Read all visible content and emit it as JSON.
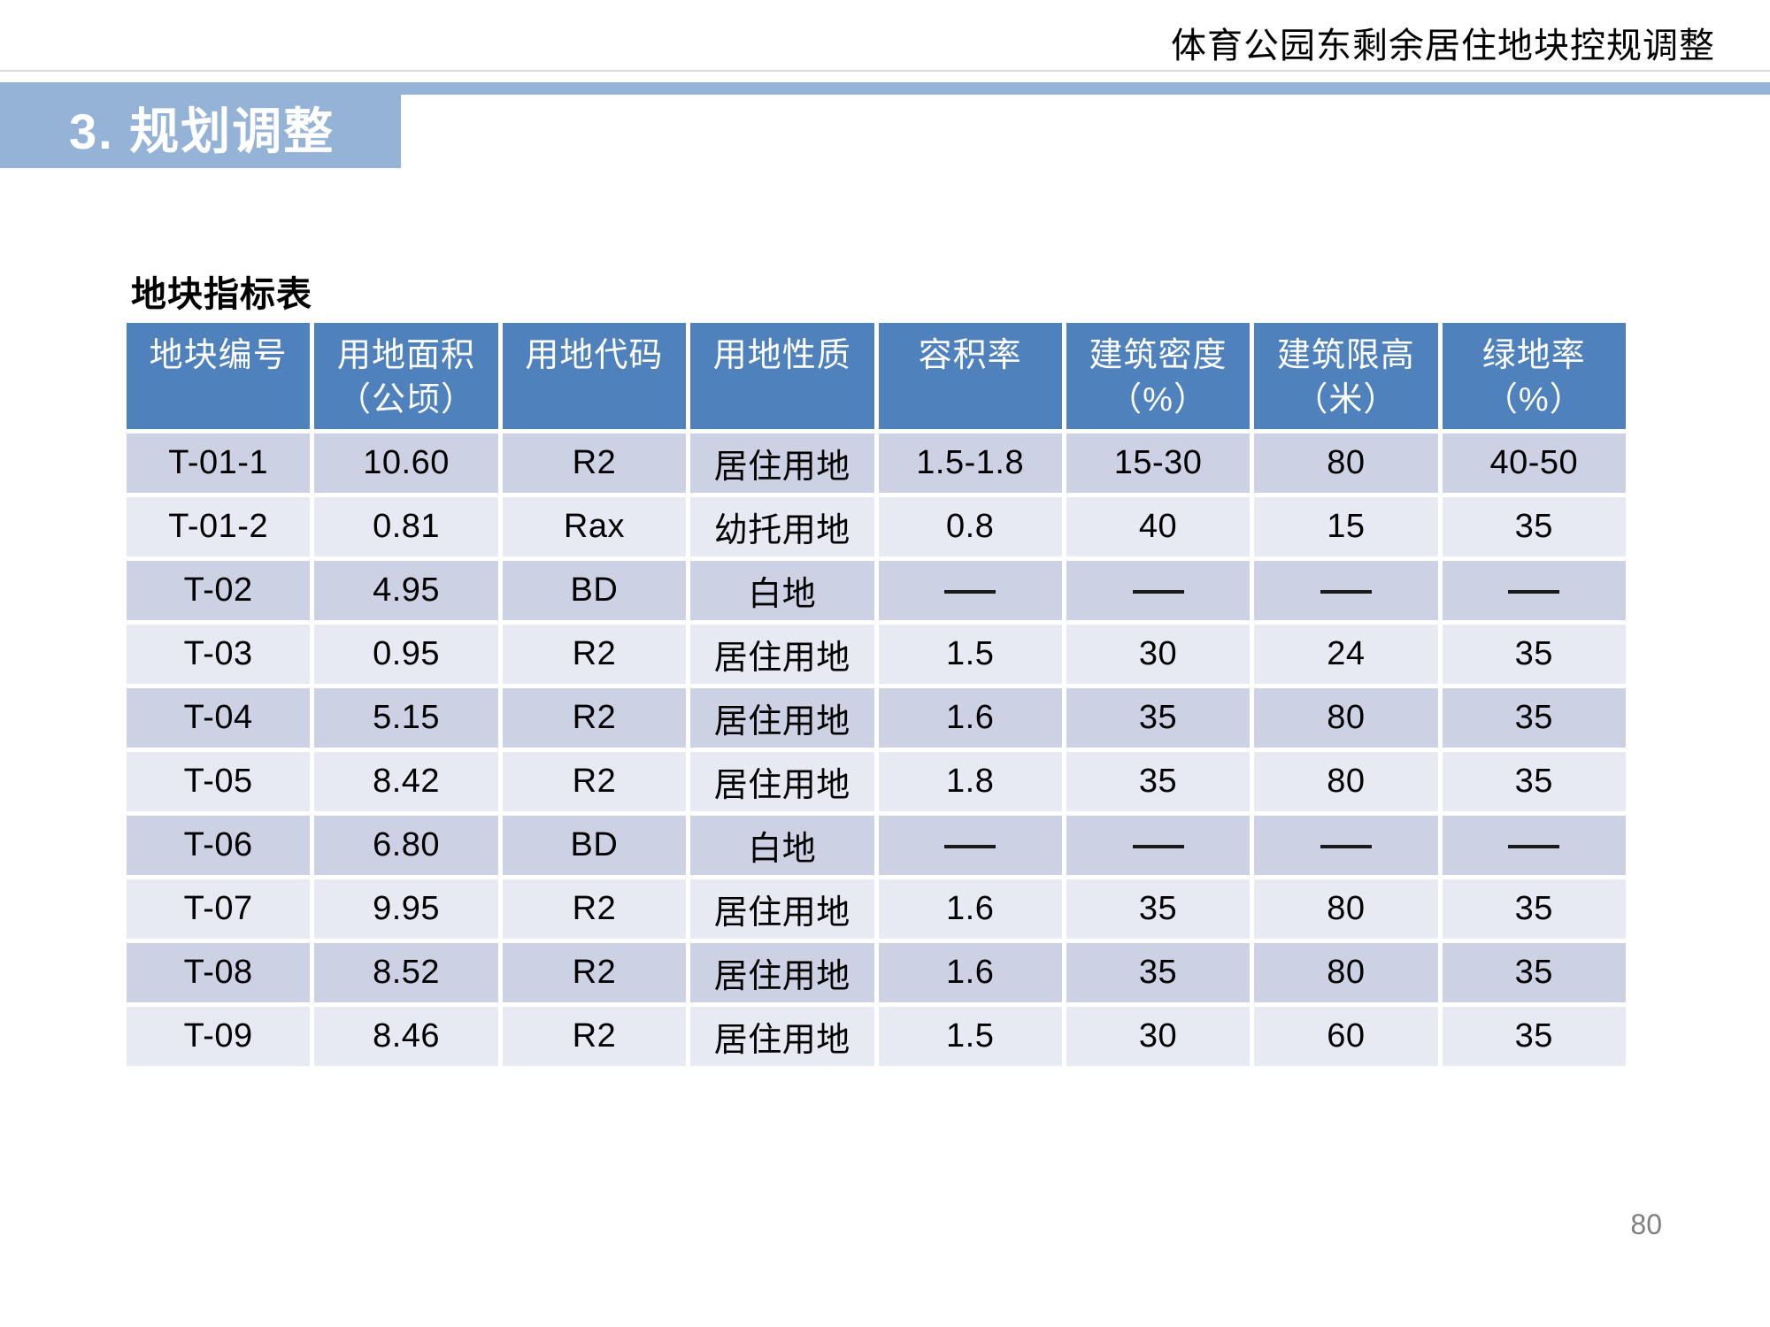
{
  "header": {
    "title": "体育公园东剩余居住地块控规调整"
  },
  "section": {
    "title": "3. 规划调整"
  },
  "table": {
    "title": "地块指标表",
    "columns": [
      [
        "地块编号"
      ],
      [
        "用地面积",
        "（公顷）"
      ],
      [
        "用地代码"
      ],
      [
        "用地性质"
      ],
      [
        "容积率"
      ],
      [
        "建筑密度",
        "（%）"
      ],
      [
        "建筑限高",
        "（米）"
      ],
      [
        "绿地率",
        "（%）"
      ]
    ],
    "dash_placeholder": "——",
    "rows": [
      [
        "T-01-1",
        "10.60",
        "R2",
        "居住用地",
        "1.5-1.8",
        "15-30",
        "80",
        "40-50"
      ],
      [
        "T-01-2",
        "0.81",
        "Rax",
        "幼托用地",
        "0.8",
        "40",
        "15",
        "35"
      ],
      [
        "T-02",
        "4.95",
        "BD",
        "白地",
        "——",
        "——",
        "——",
        "——"
      ],
      [
        "T-03",
        "0.95",
        "R2",
        "居住用地",
        "1.5",
        "30",
        "24",
        "35"
      ],
      [
        "T-04",
        "5.15",
        "R2",
        "居住用地",
        "1.6",
        "35",
        "80",
        "35"
      ],
      [
        "T-05",
        "8.42",
        "R2",
        "居住用地",
        "1.8",
        "35",
        "80",
        "35"
      ],
      [
        "T-06",
        "6.80",
        "BD",
        "白地",
        "——",
        "——",
        "——",
        "——"
      ],
      [
        "T-07",
        "9.95",
        "R2",
        "居住用地",
        "1.6",
        "35",
        "80",
        "35"
      ],
      [
        "T-08",
        "8.52",
        "R2",
        "居住用地",
        "1.6",
        "35",
        "80",
        "35"
      ],
      [
        "T-09",
        "8.46",
        "R2",
        "居住用地",
        "1.5",
        "30",
        "60",
        "35"
      ]
    ]
  },
  "footer": {
    "page_number": "80"
  },
  "colors": {
    "banner_blue": "#95b3d7",
    "table_header_blue": "#4f81bd",
    "row_dark": "#ccd1e3",
    "row_light": "#e8eaf3",
    "title_rule": "#d9d9d9",
    "page_gray": "#7f7f7f"
  }
}
